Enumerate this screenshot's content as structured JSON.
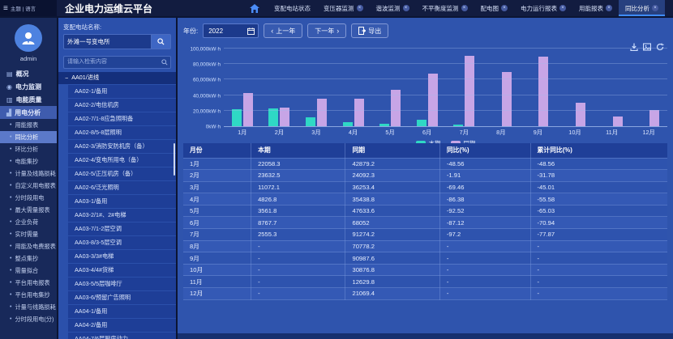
{
  "app": {
    "brand": "主题 | 语言",
    "title": "企业电力运维云平台",
    "tabs": [
      {
        "label": "变配电站状态",
        "closable": false,
        "active": false
      },
      {
        "label": "变压器监测",
        "closable": true,
        "active": false
      },
      {
        "label": "谐波监测",
        "closable": true,
        "active": false
      },
      {
        "label": "不平衡度监测",
        "closable": true,
        "active": false
      },
      {
        "label": "配电图",
        "closable": true,
        "active": false
      },
      {
        "label": "电力运行报表",
        "closable": true,
        "active": false
      },
      {
        "label": "用能报表",
        "closable": true,
        "active": false
      },
      {
        "label": "同比分析",
        "closable": true,
        "active": true
      }
    ]
  },
  "sidebar": {
    "user": "admin",
    "items": [
      {
        "label": "概况",
        "type": "group",
        "icon": "overview-icon"
      },
      {
        "label": "电力监测",
        "type": "group",
        "icon": "power-monitor-icon"
      },
      {
        "label": "电能质量",
        "type": "group",
        "icon": "energy-quality-icon"
      },
      {
        "label": "用电分析",
        "type": "group",
        "icon": "power-analysis-icon",
        "active": true
      },
      {
        "label": "用能报表",
        "type": "sub"
      },
      {
        "label": "同比分析",
        "type": "sub",
        "selected": true
      },
      {
        "label": "环比分析",
        "type": "sub"
      },
      {
        "label": "电能集抄",
        "type": "sub"
      },
      {
        "label": "计量及线路损耗",
        "type": "sub"
      },
      {
        "label": "自定义用电报表",
        "type": "sub"
      },
      {
        "label": "分时段用电",
        "type": "sub"
      },
      {
        "label": "最大需量报表",
        "type": "sub"
      },
      {
        "label": "企业负荷",
        "type": "sub"
      },
      {
        "label": "实时需量",
        "type": "sub"
      },
      {
        "label": "用能及电费报表",
        "type": "sub"
      },
      {
        "label": "整点集抄",
        "type": "sub"
      },
      {
        "label": "需量拟合",
        "type": "sub"
      },
      {
        "label": "平台用电报表",
        "type": "sub"
      },
      {
        "label": "平台用电集抄",
        "type": "sub"
      },
      {
        "label": "计量与线路损耗",
        "type": "sub"
      },
      {
        "label": "分时段用电(分)",
        "type": "sub"
      }
    ]
  },
  "station_panel": {
    "label": "变配电站名称:",
    "station_value": "外滩一号变电所",
    "search_placeholder": "请输入检索内容",
    "tree_root": "AA01/进线",
    "tree_items": [
      "AA02-1/备用",
      "AA02-2/电信机房",
      "AA02-7/1-8应急照明备",
      "AA02-8/5-8层照明",
      "AA02-3/消防安防机房（备）",
      "AA02-4/变电所用电（备）",
      "AA02-5/正压机房（备）",
      "AA02-6/泛光照明",
      "AA03-1/备用",
      "AA03-2/1#、2#电梯",
      "AA03-7/1-2层空调",
      "AA03-8/3-5层空调",
      "AA03-3/3#电梯",
      "AA03-4/4#货梯",
      "AA03-5/5层咖啡厅",
      "AA03-6/预留广告照明",
      "AA04-1/备用",
      "AA04-2/备用",
      "AA04-7/6层厨房动力"
    ]
  },
  "toolbar": {
    "year_label": "年份:",
    "year_value": "2022",
    "prev_label": "上一年",
    "next_label": "下一年",
    "export_label": "导出"
  },
  "chart_data": {
    "type": "bar",
    "title": "",
    "xlabel": "",
    "ylabel": "kW·h",
    "ylim": [
      0,
      100000
    ],
    "grid": true,
    "legend_position": "bottom",
    "categories": [
      "1月",
      "2月",
      "3月",
      "4月",
      "5月",
      "6月",
      "7月",
      "8月",
      "9月",
      "10月",
      "11月",
      "12月"
    ],
    "ytick_labels": [
      "0kW·h",
      "20,000kW·h",
      "40,000kW·h",
      "60,000kW·h",
      "80,000kW·h",
      "100,000kW·h"
    ],
    "yticks": [
      0,
      20000,
      40000,
      60000,
      80000,
      100000
    ],
    "series": [
      {
        "name": "本期",
        "color": "#2fd8c5",
        "values": [
          22058.3,
          23632.5,
          11072.1,
          4826.8,
          3561.8,
          8767.7,
          2555.3,
          null,
          null,
          null,
          null,
          null
        ]
      },
      {
        "name": "同期",
        "color": "#c7a5e6",
        "values": [
          42879.2,
          24092.3,
          36253.4,
          35438.8,
          47633.6,
          68052,
          91274.2,
          70778.2,
          90987.6,
          30876.8,
          12629.8,
          21069.4
        ]
      }
    ]
  },
  "table": {
    "columns": [
      "月份",
      "本期",
      "同期",
      "同比(%)",
      "累计同比(%)"
    ],
    "rows": [
      [
        "1月",
        "22058.3",
        "42879.2",
        "-48.56",
        "-48.56"
      ],
      [
        "2月",
        "23632.5",
        "24092.3",
        "-1.91",
        "-31.78"
      ],
      [
        "3月",
        "11072.1",
        "36253.4",
        "-69.46",
        "-45.01"
      ],
      [
        "4月",
        "4826.8",
        "35438.8",
        "-86.38",
        "-55.58"
      ],
      [
        "5月",
        "3561.8",
        "47633.6",
        "-92.52",
        "-65.03"
      ],
      [
        "6月",
        "8767.7",
        "68052",
        "-87.12",
        "-70.94"
      ],
      [
        "7月",
        "2555.3",
        "91274.2",
        "-97.2",
        "-77.87"
      ],
      [
        "8月",
        "-",
        "70778.2",
        "-",
        "-"
      ],
      [
        "9月",
        "-",
        "90987.6",
        "-",
        "-"
      ],
      [
        "10月",
        "-",
        "30876.8",
        "-",
        "-"
      ],
      [
        "11月",
        "-",
        "12629.8",
        "-",
        "-"
      ],
      [
        "12月",
        "-",
        "21069.4",
        "-",
        "-"
      ]
    ]
  },
  "icons": {
    "menu": "≡",
    "close": "×",
    "collapse": "−",
    "bullet": "•",
    "chevron_left": "‹",
    "chevron_right": "›"
  },
  "icon_glyphs": {
    "overview-icon": "▤",
    "power-monitor-icon": "◉",
    "energy-quality-icon": "▥",
    "power-analysis-icon": "▟"
  },
  "colors": {
    "series_current": "#2fd8c5",
    "series_previous": "#c7a5e6",
    "accent": "#3f8cff",
    "alert": "#e23b3b"
  }
}
